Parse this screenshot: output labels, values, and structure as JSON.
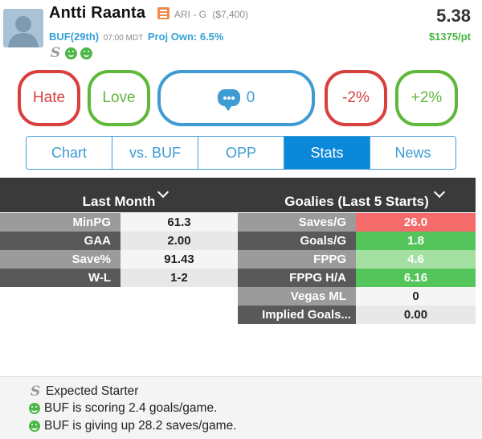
{
  "player": {
    "name": "Antti Raanta",
    "position_label": "ARI - G",
    "salary": "($7,400)",
    "projected_points": "5.38",
    "price_per_point": "$1375/pt",
    "opponent": "BUF(29th)",
    "game_time": "07:00 MDT",
    "proj_own": "Proj Own: 6.5%"
  },
  "actions": {
    "hate_label": "Hate",
    "love_label": "Love",
    "comment_count": "0",
    "minus_label": "-2%",
    "plus_label": "+2%"
  },
  "tabs": [
    {
      "label": "Chart",
      "active": false
    },
    {
      "label": "vs. BUF",
      "active": false
    },
    {
      "label": "OPP",
      "active": false
    },
    {
      "label": "Stats",
      "active": true
    },
    {
      "label": "News",
      "active": false
    }
  ],
  "last_month": {
    "title": "Last Month",
    "rows": [
      {
        "label": "MinPG",
        "value": "61.3"
      },
      {
        "label": "GAA",
        "value": "2.00"
      },
      {
        "label": "Save%",
        "value": "91.43"
      },
      {
        "label": "W-L",
        "value": "1-2"
      }
    ]
  },
  "goalies": {
    "title": "Goalies (Last 5 Starts)",
    "rows": [
      {
        "label": "Saves/G",
        "value": "26.0",
        "color": "#f56a6a"
      },
      {
        "label": "Goals/G",
        "value": "1.8",
        "color": "#54c55a"
      },
      {
        "label": "FPPG",
        "value": "4.6",
        "color": "#a4e0a2"
      },
      {
        "label": "FPPG H/A",
        "value": "6.16",
        "color": "#54c55a"
      },
      {
        "label": "Vegas ML",
        "value": "0",
        "color": ""
      },
      {
        "label": "Implied Goals...",
        "value": "0.00",
        "color": ""
      }
    ]
  },
  "notes": [
    {
      "icon": "starter-s-icon",
      "text": "Expected Starter"
    },
    {
      "icon": "smiley-icon",
      "text": "BUF is scoring 2.4 goals/game."
    },
    {
      "icon": "smiley-icon",
      "text": "BUF is giving up 28.2 saves/game."
    }
  ],
  "colors": {
    "accent_blue": "#3f9bd3",
    "active_tab": "#0b88d9",
    "hate_red": "#d8403e",
    "love_green": "#5fb83a",
    "header_dark": "#3a3a3a"
  }
}
